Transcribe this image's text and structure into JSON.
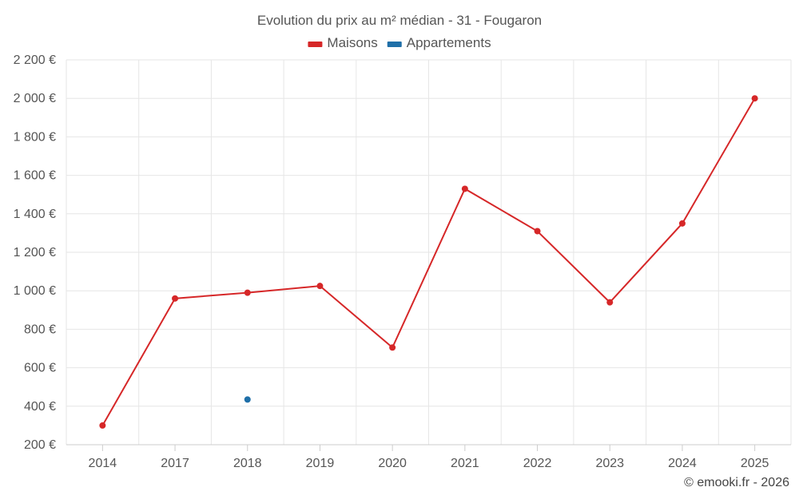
{
  "chart_data": {
    "type": "line",
    "title": "Evolution du prix au m² médian - 31 - Fougaron",
    "categories": [
      "2014",
      "2017",
      "2018",
      "2019",
      "2020",
      "2021",
      "2022",
      "2023",
      "2024",
      "2025"
    ],
    "series": [
      {
        "name": "Maisons",
        "color": "#d62728",
        "values": [
          300,
          960,
          990,
          1025,
          705,
          1530,
          1310,
          940,
          1350,
          2000
        ]
      },
      {
        "name": "Appartements",
        "color": "#1f6fa8",
        "values": [
          null,
          null,
          435,
          null,
          null,
          null,
          null,
          null,
          null,
          null
        ]
      }
    ],
    "ylim": [
      200,
      2200
    ],
    "yticks": [
      200,
      400,
      600,
      800,
      1000,
      1200,
      1400,
      1600,
      1800,
      2000,
      2200
    ],
    "ytick_labels": [
      "200 €",
      "400 €",
      "600 €",
      "800 €",
      "1 000 €",
      "1 200 €",
      "1 400 €",
      "1 600 €",
      "1 800 €",
      "2 000 €",
      "2 200 €"
    ],
    "legend_position": "top-center",
    "grid": true,
    "credit": "© emooki.fr - 2026"
  }
}
